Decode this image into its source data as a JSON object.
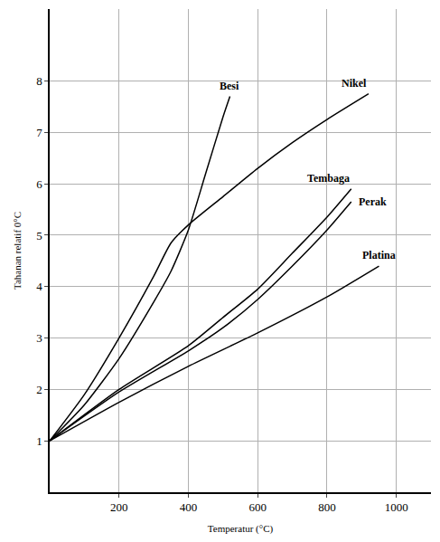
{
  "chart_data": {
    "type": "line",
    "x_label": "Temperatur (°C)",
    "y_label": "Tahanan relatif 0°C",
    "xlim": [
      0,
      1100
    ],
    "ylim": [
      0,
      9.4
    ],
    "xticks": [
      200,
      400,
      600,
      800,
      1000
    ],
    "yticks": [
      1,
      2,
      3,
      4,
      5,
      6,
      7,
      8
    ],
    "grid": true,
    "series": [
      {
        "name": "Besi",
        "color": "#000000",
        "x": [
          0,
          100,
          200,
          300,
          350,
          400,
          450,
          500,
          520
        ],
        "values": [
          1,
          1.7,
          2.6,
          3.7,
          4.3,
          5.1,
          6.2,
          7.3,
          7.7
        ]
      },
      {
        "name": "Nikel",
        "color": "#000000",
        "x": [
          0,
          100,
          200,
          300,
          350,
          400,
          500,
          600,
          700,
          800,
          920
        ],
        "values": [
          1,
          1.9,
          3.0,
          4.2,
          4.85,
          5.2,
          5.75,
          6.3,
          6.8,
          7.25,
          7.75
        ]
      },
      {
        "name": "Tembaga",
        "color": "#000000",
        "x": [
          0,
          200,
          400,
          500,
          600,
          700,
          800,
          870
        ],
        "values": [
          1,
          2,
          2.85,
          3.4,
          3.95,
          4.65,
          5.35,
          5.9
        ]
      },
      {
        "name": "Perak",
        "color": "#000000",
        "x": [
          0,
          200,
          400,
          500,
          600,
          700,
          800,
          870
        ],
        "values": [
          1,
          1.95,
          2.75,
          3.2,
          3.75,
          4.4,
          5.1,
          5.65
        ]
      },
      {
        "name": "Platina",
        "color": "#000000",
        "x": [
          0,
          200,
          400,
          600,
          800,
          950
        ],
        "values": [
          1,
          1.75,
          2.45,
          3.1,
          3.8,
          4.4
        ]
      }
    ]
  }
}
